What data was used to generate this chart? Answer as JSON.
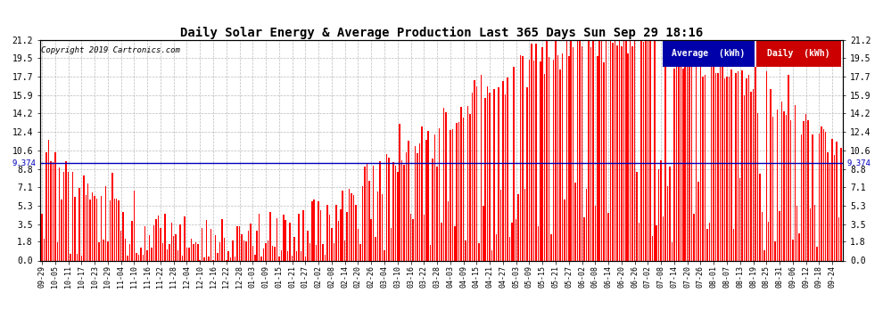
{
  "title": "Daily Solar Energy & Average Production Last 365 Days Sun Sep 29 18:16",
  "copyright_text": "Copyright 2019 Cartronics.com",
  "average_value": 9.374,
  "yticks": [
    0.0,
    1.8,
    3.5,
    5.3,
    7.1,
    8.8,
    10.6,
    12.4,
    14.2,
    15.9,
    17.7,
    19.5,
    21.2
  ],
  "ymax": 21.2,
  "ymin": 0.0,
  "bar_color": "#FF0000",
  "average_line_color": "#0000BB",
  "background_color": "#FFFFFF",
  "grid_color": "#AAAAAA",
  "legend_avg_bg": "#0000AA",
  "legend_daily_bg": "#CC0000",
  "legend_avg_text": "Average  (kWh)",
  "legend_daily_text": "Daily  (kWh)",
  "x_dates": [
    "09-29",
    "10-05",
    "10-11",
    "10-17",
    "10-23",
    "10-29",
    "11-04",
    "11-10",
    "11-16",
    "11-22",
    "11-28",
    "12-04",
    "12-10",
    "12-16",
    "12-22",
    "12-28",
    "01-03",
    "01-09",
    "01-15",
    "01-21",
    "01-27",
    "02-02",
    "02-08",
    "02-14",
    "02-20",
    "02-26",
    "03-04",
    "03-10",
    "03-16",
    "03-22",
    "03-28",
    "04-03",
    "04-09",
    "04-15",
    "04-21",
    "04-27",
    "05-03",
    "05-09",
    "05-15",
    "05-21",
    "05-27",
    "06-02",
    "06-08",
    "06-14",
    "06-20",
    "06-26",
    "07-02",
    "07-08",
    "07-14",
    "07-20",
    "07-26",
    "08-01",
    "08-07",
    "08-13",
    "08-19",
    "08-25",
    "08-31",
    "09-06",
    "09-12",
    "09-18",
    "09-24"
  ],
  "n_bars": 365,
  "seed": 99
}
